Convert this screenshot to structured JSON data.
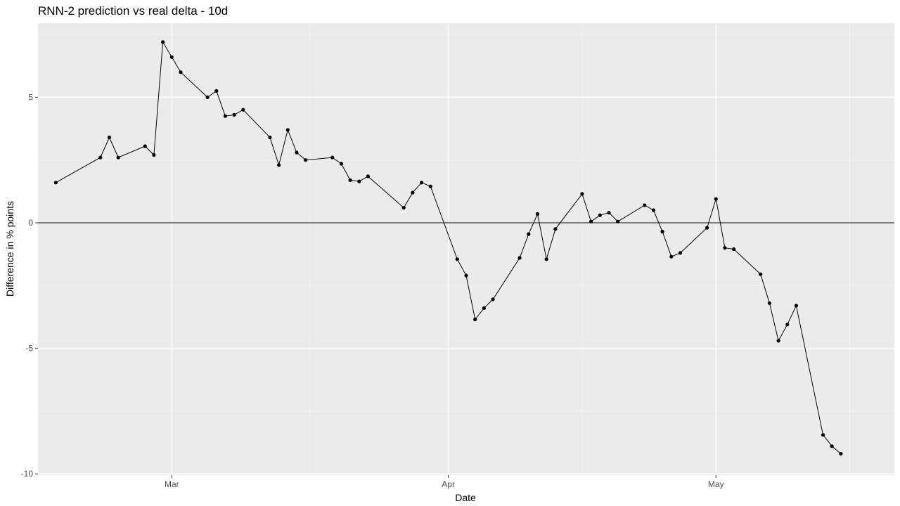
{
  "chart_data": {
    "type": "line",
    "title": "RNN-2 prediction vs real delta - 10d",
    "xlabel": "Date",
    "ylabel": "Difference in % points",
    "x_ticks": [
      {
        "date": "2020-03-01",
        "label": "Mar"
      },
      {
        "date": "2020-04-01",
        "label": "Apr"
      },
      {
        "date": "2020-05-01",
        "label": "May"
      }
    ],
    "y_ticks": [
      -10,
      -5,
      0,
      5
    ],
    "xlim": [
      "2020-02-15",
      "2020-05-21"
    ],
    "ylim": [
      -10.05,
      7.95
    ],
    "reference_line_y": 0,
    "grid": true,
    "panel_background": "#ebebeb",
    "line_color": "#000000",
    "point_color": "#000000",
    "series": [
      {
        "x": [
          "2020-02-17",
          "2020-02-22",
          "2020-02-23",
          "2020-02-24",
          "2020-02-27",
          "2020-02-28",
          "2020-02-29",
          "2020-03-01",
          "2020-03-02",
          "2020-03-05",
          "2020-03-06",
          "2020-03-07",
          "2020-03-08",
          "2020-03-09",
          "2020-03-12",
          "2020-03-13",
          "2020-03-14",
          "2020-03-15",
          "2020-03-16",
          "2020-03-19",
          "2020-03-20",
          "2020-03-21",
          "2020-03-22",
          "2020-03-23",
          "2020-03-27",
          "2020-03-28",
          "2020-03-29",
          "2020-03-30",
          "2020-04-02",
          "2020-04-03",
          "2020-04-04",
          "2020-04-05",
          "2020-04-06",
          "2020-04-09",
          "2020-04-10",
          "2020-04-11",
          "2020-04-12",
          "2020-04-13",
          "2020-04-16",
          "2020-04-17",
          "2020-04-18",
          "2020-04-19",
          "2020-04-20",
          "2020-04-23",
          "2020-04-24",
          "2020-04-25",
          "2020-04-26",
          "2020-04-27",
          "2020-04-30",
          "2020-05-01",
          "2020-05-02",
          "2020-05-03",
          "2020-05-06",
          "2020-05-07",
          "2020-05-08",
          "2020-05-09",
          "2020-05-10",
          "2020-05-13",
          "2020-05-14",
          "2020-05-15"
        ],
        "values": [
          1.6,
          2.6,
          3.4,
          2.6,
          3.05,
          2.7,
          7.2,
          6.6,
          6.0,
          5.0,
          5.25,
          4.25,
          4.3,
          4.5,
          3.4,
          2.3,
          3.7,
          2.8,
          2.5,
          2.6,
          2.35,
          1.7,
          1.65,
          1.85,
          0.6,
          1.2,
          1.6,
          1.45,
          -1.45,
          -2.1,
          -3.85,
          -3.4,
          -3.05,
          -1.4,
          -0.45,
          0.35,
          -1.45,
          -0.25,
          1.15,
          0.05,
          0.3,
          0.4,
          0.05,
          0.7,
          0.5,
          -0.35,
          -1.35,
          -1.2,
          -0.2,
          0.95,
          -1.0,
          -1.05,
          -2.05,
          -3.2,
          -4.7,
          -4.05,
          -3.3,
          -8.45,
          -8.9,
          -9.2
        ]
      }
    ]
  }
}
